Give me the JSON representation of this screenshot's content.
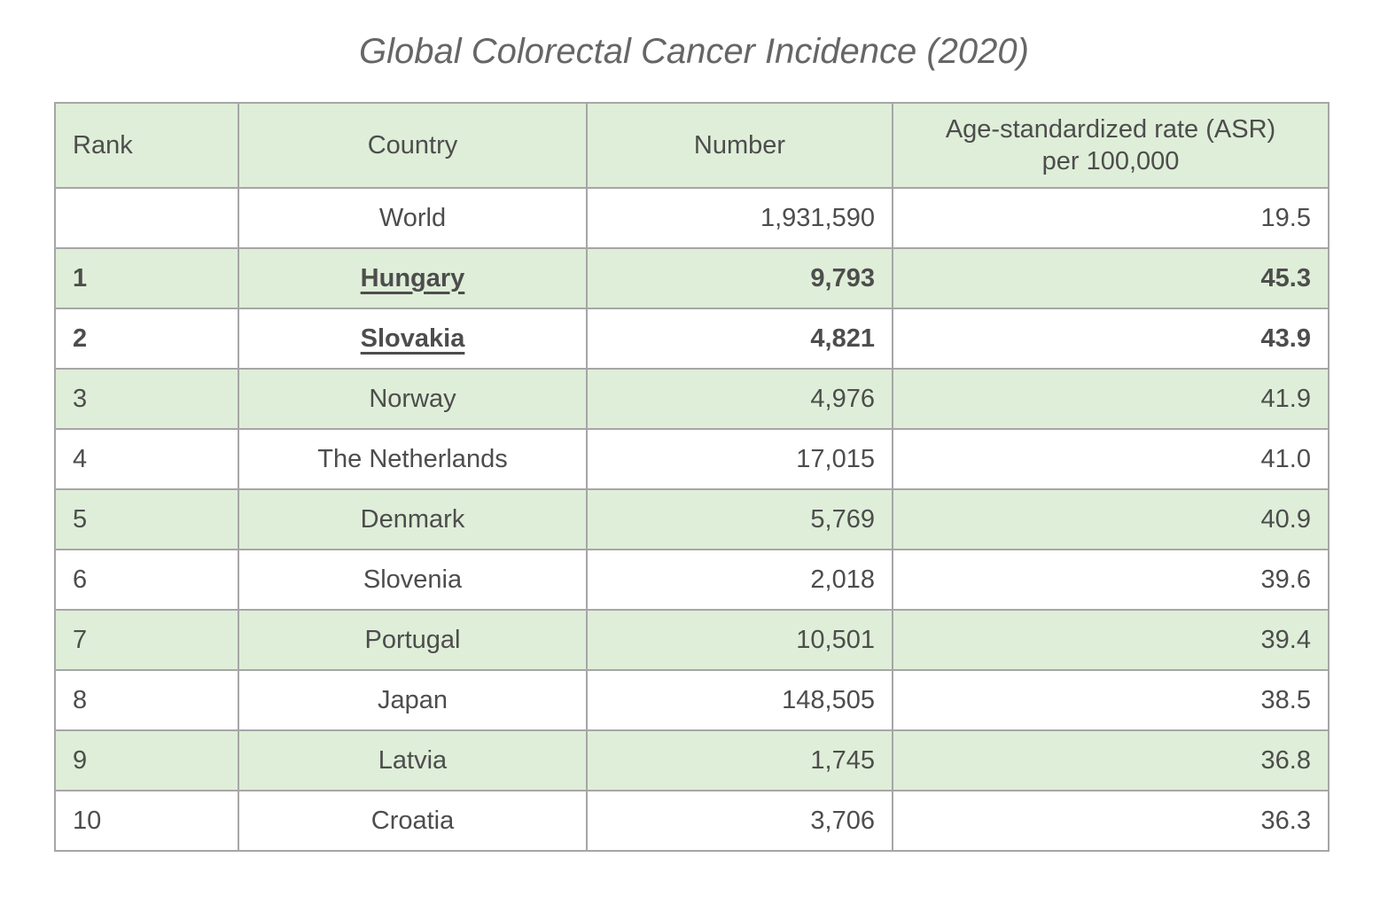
{
  "title": "Global Colorectal Cancer Incidence (2020)",
  "colors": {
    "row_shaded_green": "#dfeed8",
    "row_plain_white": "#ffffff",
    "grid_border": "#a6a6a6",
    "table_text": "#4d4d4d",
    "title_text": "#666666"
  },
  "table": {
    "headers": {
      "rank": "Rank",
      "country": "Country",
      "number": "Number",
      "asr_line1": "Age-standardized rate (ASR)",
      "asr_line2": "per 100,000"
    },
    "rows": [
      {
        "rank": "",
        "country": "World",
        "number": "1,931,590",
        "asr": "19.5",
        "emphasis": false
      },
      {
        "rank": "1",
        "country": "Hungary",
        "number": "9,793",
        "asr": "45.3",
        "emphasis": true
      },
      {
        "rank": "2",
        "country": "Slovakia",
        "number": "4,821",
        "asr": "43.9",
        "emphasis": true
      },
      {
        "rank": "3",
        "country": "Norway",
        "number": "4,976",
        "asr": "41.9",
        "emphasis": false
      },
      {
        "rank": "4",
        "country": "The Netherlands",
        "number": "17,015",
        "asr": "41.0",
        "emphasis": false
      },
      {
        "rank": "5",
        "country": "Denmark",
        "number": "5,769",
        "asr": "40.9",
        "emphasis": false
      },
      {
        "rank": "6",
        "country": "Slovenia",
        "number": "2,018",
        "asr": "39.6",
        "emphasis": false
      },
      {
        "rank": "7",
        "country": "Portugal",
        "number": "10,501",
        "asr": "39.4",
        "emphasis": false
      },
      {
        "rank": "8",
        "country": "Japan",
        "number": "148,505",
        "asr": "38.5",
        "emphasis": false
      },
      {
        "rank": "9",
        "country": "Latvia",
        "number": "1,745",
        "asr": "36.8",
        "emphasis": false
      },
      {
        "rank": "10",
        "country": "Croatia",
        "number": "3,706",
        "asr": "36.3",
        "emphasis": false
      }
    ]
  },
  "chart_data": {
    "type": "table",
    "title": "Global Colorectal Cancer Incidence (2020)",
    "columns": [
      "Rank",
      "Country",
      "Number",
      "Age-standardized rate (ASR) per 100,000"
    ],
    "rows": [
      [
        null,
        "World",
        1931590,
        19.5
      ],
      [
        1,
        "Hungary",
        9793,
        45.3
      ],
      [
        2,
        "Slovakia",
        4821,
        43.9
      ],
      [
        3,
        "Norway",
        4976,
        41.9
      ],
      [
        4,
        "The Netherlands",
        17015,
        41.0
      ],
      [
        5,
        "Denmark",
        5769,
        40.9
      ],
      [
        6,
        "Slovenia",
        2018,
        39.6
      ],
      [
        7,
        "Portugal",
        10501,
        39.4
      ],
      [
        8,
        "Japan",
        148505,
        38.5
      ],
      [
        9,
        "Latvia",
        1745,
        36.8
      ],
      [
        10,
        "Croatia",
        3706,
        36.3
      ]
    ],
    "notes": "Rows for Hungary (rank 1) and Slovakia (rank 2) are emphasized bold with underlined country names; alternating rows shaded light green starting with the header row."
  }
}
